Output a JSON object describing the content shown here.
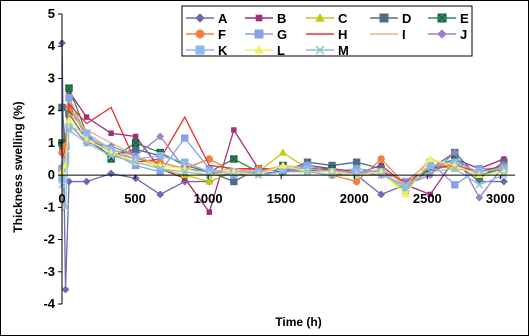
{
  "chart_data": {
    "type": "line",
    "xlabel": "Time (h)",
    "ylabel": "Thickness swelling (%)",
    "xlim": [
      0,
      3100
    ],
    "ylim": [
      -4,
      5
    ],
    "xticks": [
      "0",
      "500",
      "1000",
      "1500",
      "2000",
      "2500",
      "3000"
    ],
    "yticks": [
      "-4",
      "-3",
      "-2",
      "-1",
      "0",
      "1",
      "2",
      "3",
      "4",
      "5"
    ],
    "legend_position": "top",
    "grid": false,
    "series": [
      {
        "name": "A",
        "color": "#6b6baf",
        "marker": "diamond",
        "x": [
          0,
          24,
          48,
          168,
          336,
          504,
          672,
          840,
          1008,
          1176,
          1344,
          1512,
          1680,
          1848,
          2016,
          2184,
          2352,
          2520,
          2688,
          2856,
          3024
        ],
        "y": [
          4.1,
          -3.55,
          -0.2,
          -0.2,
          0.05,
          -0.1,
          -0.6,
          -0.2,
          -0.2,
          0.1,
          0.05,
          0.1,
          0.15,
          0.1,
          0.0,
          -0.6,
          -0.3,
          0.1,
          0.4,
          -0.2,
          -0.2
        ]
      },
      {
        "name": "B",
        "color": "#a0307a",
        "marker": "square-small",
        "x": [
          0,
          24,
          48,
          168,
          336,
          504,
          672,
          840,
          1008,
          1176,
          1344,
          1512,
          1680,
          1848,
          2016,
          2184,
          2352,
          2520,
          2688,
          2856,
          3024
        ],
        "y": [
          0.8,
          1.0,
          2.6,
          1.8,
          1.3,
          1.2,
          0.2,
          -0.1,
          -1.15,
          1.4,
          0.2,
          0.1,
          0.3,
          0.2,
          0.05,
          0.3,
          -0.3,
          -0.6,
          0.5,
          0.2,
          0.5
        ]
      },
      {
        "name": "C",
        "color": "#c8c810",
        "marker": "triangle",
        "x": [
          0,
          24,
          48,
          168,
          336,
          504,
          672,
          840,
          1008,
          1176,
          1344,
          1512,
          1680,
          1848,
          2016,
          2184,
          2352,
          2520,
          2688,
          2856,
          3024
        ],
        "y": [
          0.3,
          0.5,
          2.2,
          1.2,
          0.8,
          0.6,
          0.2,
          0.0,
          -0.2,
          0.1,
          0.1,
          0.7,
          0.2,
          0.1,
          0.1,
          0.1,
          -0.5,
          0.3,
          0.2,
          0.1,
          0.3
        ]
      },
      {
        "name": "D",
        "color": "#4c6e8c",
        "marker": "square",
        "x": [
          0,
          24,
          48,
          168,
          336,
          504,
          672,
          840,
          1008,
          1176,
          1344,
          1512,
          1680,
          1848,
          2016,
          2184,
          2352,
          2520,
          2688,
          2856,
          3024
        ],
        "y": [
          2.1,
          0.9,
          1.9,
          1.1,
          0.6,
          0.8,
          0.6,
          0.4,
          0.1,
          -0.2,
          0.2,
          0.1,
          0.4,
          0.3,
          0.4,
          0.2,
          -0.3,
          0.2,
          0.7,
          -0.1,
          0.4
        ]
      },
      {
        "name": "E",
        "color": "#2e8b57",
        "marker": "square-x",
        "x": [
          0,
          24,
          48,
          168,
          336,
          504,
          672,
          840,
          1008,
          1176,
          1344,
          1512,
          1680,
          1848,
          2016,
          2184,
          2352,
          2520,
          2688,
          2856,
          3024
        ],
        "y": [
          1.0,
          0.9,
          2.7,
          1.3,
          0.5,
          1.0,
          0.7,
          0.3,
          0.1,
          0.5,
          0.1,
          0.3,
          0.2,
          0.2,
          0.1,
          0.1,
          -0.4,
          0.2,
          0.5,
          0.0,
          0.2
        ]
      },
      {
        "name": "F",
        "color": "#f08040",
        "marker": "circle",
        "x": [
          0,
          24,
          48,
          168,
          336,
          504,
          672,
          840,
          1008,
          1176,
          1344,
          1512,
          1680,
          1848,
          2016,
          2184,
          2352,
          2520,
          2688,
          2856,
          3024
        ],
        "y": [
          0.7,
          0.9,
          2.1,
          1.2,
          0.7,
          0.5,
          0.4,
          0.2,
          0.5,
          0.1,
          0.2,
          0.2,
          0.1,
          0.0,
          -0.2,
          0.5,
          -0.3,
          0.3,
          0.3,
          0.1,
          0.3
        ]
      },
      {
        "name": "G",
        "color": "#8aa0e8",
        "marker": "square",
        "x": [
          0,
          24,
          48,
          168,
          336,
          504,
          672,
          840,
          1008,
          1176,
          1344,
          1512,
          1680,
          1848,
          2016,
          2184,
          2352,
          2520,
          2688,
          2856,
          3024
        ],
        "y": [
          0.2,
          0.6,
          2.4,
          1.2,
          0.7,
          0.3,
          0.1,
          1.15,
          0.2,
          0.0,
          0.1,
          0.2,
          0.3,
          0.1,
          0.2,
          0.1,
          -0.2,
          0.4,
          -0.3,
          0.2,
          0.2
        ]
      },
      {
        "name": "H",
        "color": "#e83030",
        "marker": "none",
        "x": [
          0,
          24,
          48,
          168,
          336,
          504,
          672,
          840,
          1008,
          1176,
          1344,
          1512,
          1680,
          1848,
          2016,
          2184,
          2352,
          2520,
          2688,
          2856,
          3024
        ],
        "y": [
          0.5,
          0.8,
          2.2,
          1.6,
          2.1,
          0.4,
          0.5,
          1.8,
          0.3,
          0.2,
          0.2,
          0.2,
          0.1,
          0.2,
          0.1,
          0.1,
          -0.2,
          0.2,
          0.3,
          0.1,
          0.3
        ]
      },
      {
        "name": "I",
        "color": "#f0b080",
        "marker": "none",
        "x": [
          0,
          24,
          48,
          168,
          336,
          504,
          672,
          840,
          1008,
          1176,
          1344,
          1512,
          1680,
          1848,
          2016,
          2184,
          2352,
          2520,
          2688,
          2856,
          3024
        ],
        "y": [
          0.4,
          0.7,
          1.9,
          1.4,
          1.0,
          0.6,
          0.3,
          0.2,
          0.1,
          0.2,
          0.1,
          0.3,
          0.2,
          0.1,
          0.0,
          0.2,
          -0.3,
          0.5,
          0.2,
          0.1,
          0.2
        ]
      },
      {
        "name": "J",
        "color": "#9a80c8",
        "marker": "diamond",
        "x": [
          0,
          24,
          48,
          168,
          336,
          504,
          672,
          840,
          1008,
          1176,
          1344,
          1512,
          1680,
          1848,
          2016,
          2184,
          2352,
          2520,
          2688,
          2856,
          3024
        ],
        "y": [
          0.0,
          0.5,
          1.6,
          1.0,
          0.9,
          0.6,
          1.2,
          0.2,
          0.1,
          0.0,
          0.1,
          0.2,
          0.1,
          0.0,
          0.1,
          0.0,
          -0.3,
          0.0,
          0.7,
          -0.7,
          0.3
        ]
      },
      {
        "name": "K",
        "color": "#90b8f0",
        "marker": "square",
        "x": [
          0,
          24,
          48,
          168,
          336,
          504,
          672,
          840,
          1008,
          1176,
          1344,
          1512,
          1680,
          1848,
          2016,
          2184,
          2352,
          2520,
          2688,
          2856,
          3024
        ],
        "y": [
          -0.1,
          0.4,
          1.5,
          1.3,
          0.8,
          0.5,
          0.6,
          0.4,
          0.1,
          0.1,
          0.1,
          0.2,
          0.2,
          0.1,
          0.1,
          0.1,
          -0.4,
          0.3,
          0.4,
          0.1,
          0.2
        ]
      },
      {
        "name": "L",
        "color": "#f0f060",
        "marker": "triangle",
        "x": [
          0,
          24,
          48,
          168,
          336,
          504,
          672,
          840,
          1008,
          1176,
          1344,
          1512,
          1680,
          1848,
          2016,
          2184,
          2352,
          2520,
          2688,
          2856,
          3024
        ],
        "y": [
          0.1,
          0.3,
          1.7,
          1.1,
          0.7,
          0.4,
          0.3,
          0.2,
          0.0,
          0.1,
          0.0,
          0.3,
          0.1,
          0.1,
          0.0,
          0.1,
          -0.6,
          0.5,
          0.3,
          0.0,
          0.1
        ]
      },
      {
        "name": "M",
        "color": "#90c0d8",
        "marker": "x",
        "x": [
          0,
          24,
          48,
          168,
          336,
          504,
          672,
          840,
          1008,
          1176,
          1344,
          1512,
          1680,
          1848,
          2016,
          2184,
          2352,
          2520,
          2688,
          2856,
          3024
        ],
        "y": [
          -0.3,
          -1.0,
          1.4,
          1.0,
          0.6,
          0.4,
          0.2,
          0.1,
          0.0,
          0.0,
          0.0,
          0.1,
          0.1,
          0.0,
          0.0,
          0.0,
          -0.3,
          0.1,
          0.2,
          -0.3,
          0.0
        ]
      }
    ]
  }
}
